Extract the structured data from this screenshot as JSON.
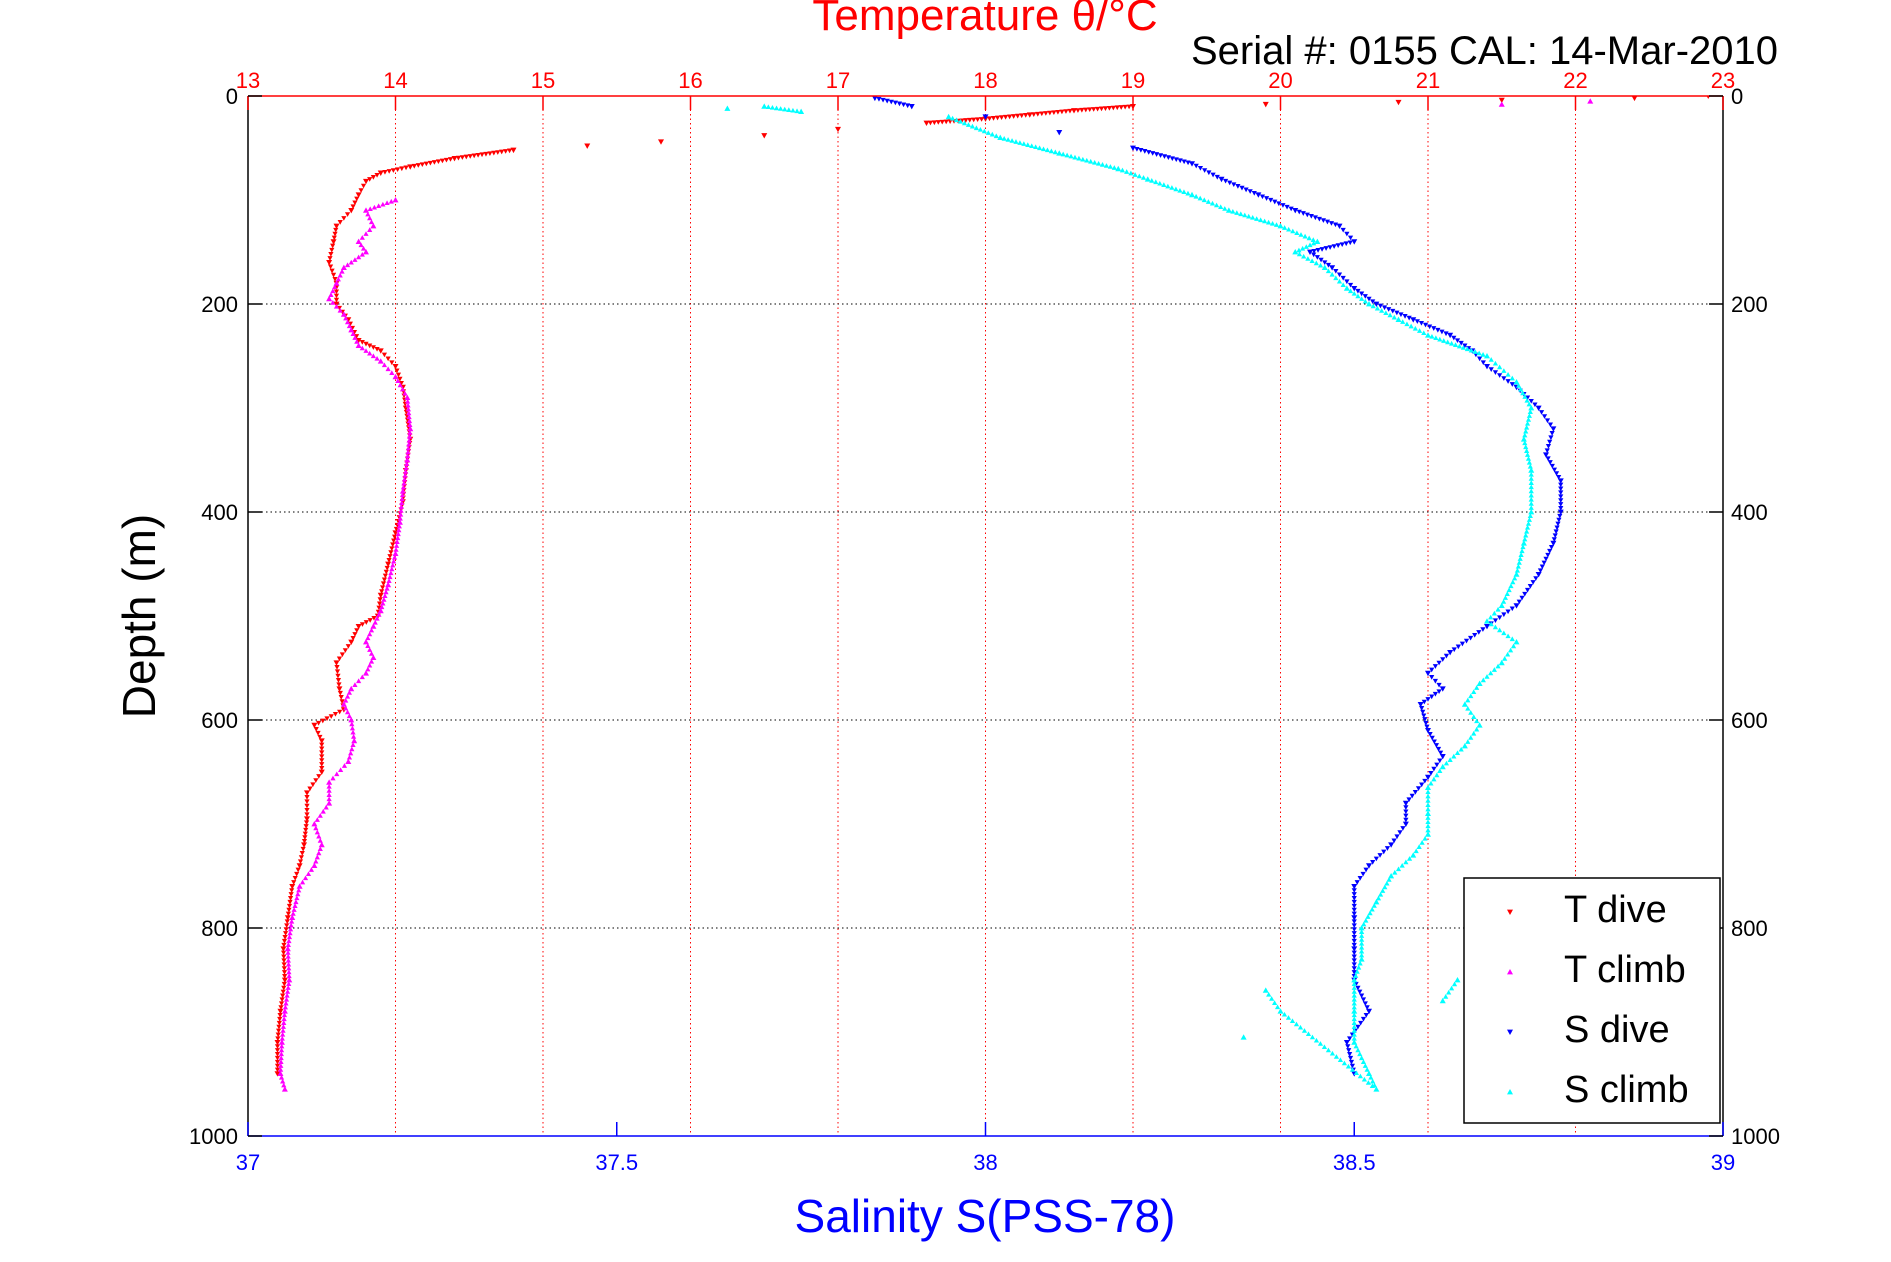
{
  "chart_data": {
    "type": "scatter",
    "title": "Temperature θ/°C",
    "subtitle": "Serial #: 0155  CAL: 14-Mar-2010",
    "ylabel": "Depth (m)",
    "xlabel_bottom": "Salinity S(PSS-78)",
    "ylim": [
      0,
      1000
    ],
    "y_inverted": true,
    "yticks": [
      0,
      200,
      400,
      600,
      800,
      1000
    ],
    "ytick_labels": [
      "0",
      "200",
      "400",
      "600",
      "800",
      "1000"
    ],
    "x_top": {
      "label": "Temperature θ/°C",
      "range": [
        13,
        23
      ],
      "ticks": [
        13,
        14,
        15,
        16,
        17,
        18,
        19,
        20,
        21,
        22,
        23
      ],
      "tick_labels": [
        "13",
        "14",
        "15",
        "16",
        "17",
        "18",
        "19",
        "20",
        "21",
        "22",
        "23"
      ]
    },
    "x_bottom": {
      "label": "Salinity S(PSS-78)",
      "range": [
        37,
        39
      ],
      "ticks": [
        37,
        37.5,
        38,
        38.5,
        39
      ],
      "tick_labels": [
        "37",
        "37.5",
        "38",
        "38.5",
        "39"
      ]
    },
    "grid": true,
    "legend_position": "bottom-right",
    "series": [
      {
        "name": "T dive",
        "axis": "top",
        "marker": "triangle-down",
        "color": "#ff0000",
        "points": [
          [
            22.9,
            0
          ],
          [
            22.4,
            2
          ],
          [
            21.5,
            4
          ],
          [
            20.8,
            6
          ],
          [
            19.9,
            8
          ],
          [
            19.0,
            10
          ],
          [
            18.6,
            14
          ],
          [
            18.3,
            18
          ],
          [
            18.0,
            22
          ],
          [
            17.6,
            26
          ],
          [
            17.0,
            32
          ],
          [
            16.5,
            38
          ],
          [
            15.8,
            44
          ],
          [
            15.3,
            48
          ],
          [
            14.8,
            52
          ],
          [
            14.4,
            60
          ],
          [
            14.1,
            68
          ],
          [
            13.9,
            74
          ],
          [
            13.8,
            82
          ],
          [
            13.75,
            95
          ],
          [
            13.7,
            110
          ],
          [
            13.6,
            125
          ],
          [
            13.58,
            140
          ],
          [
            13.55,
            160
          ],
          [
            13.6,
            180
          ],
          [
            13.6,
            200
          ],
          [
            13.68,
            215
          ],
          [
            13.75,
            235
          ],
          [
            13.9,
            245
          ],
          [
            14.0,
            260
          ],
          [
            14.05,
            280
          ],
          [
            14.07,
            300
          ],
          [
            14.1,
            330
          ],
          [
            14.07,
            360
          ],
          [
            14.05,
            390
          ],
          [
            14.0,
            420
          ],
          [
            13.95,
            450
          ],
          [
            13.9,
            480
          ],
          [
            13.88,
            500
          ],
          [
            13.75,
            510
          ],
          [
            13.7,
            525
          ],
          [
            13.6,
            545
          ],
          [
            13.62,
            570
          ],
          [
            13.65,
            590
          ],
          [
            13.45,
            605
          ],
          [
            13.5,
            620
          ],
          [
            13.5,
            650
          ],
          [
            13.4,
            670
          ],
          [
            13.4,
            695
          ],
          [
            13.38,
            720
          ],
          [
            13.35,
            740
          ],
          [
            13.3,
            760
          ],
          [
            13.27,
            790
          ],
          [
            13.24,
            820
          ],
          [
            13.25,
            850
          ],
          [
            13.22,
            880
          ],
          [
            13.2,
            910
          ],
          [
            13.2,
            940
          ]
        ]
      },
      {
        "name": "T climb",
        "axis": "top",
        "marker": "triangle-up",
        "color": "#ff00ff",
        "points": [
          [
            22.1,
            5
          ],
          [
            21.5,
            8
          ],
          [
            14.0,
            100
          ],
          [
            13.8,
            110
          ],
          [
            13.85,
            125
          ],
          [
            13.75,
            140
          ],
          [
            13.8,
            150
          ],
          [
            13.65,
            165
          ],
          [
            13.6,
            180
          ],
          [
            13.55,
            195
          ],
          [
            13.65,
            210
          ],
          [
            13.7,
            225
          ],
          [
            13.75,
            240
          ],
          [
            13.9,
            255
          ],
          [
            14.0,
            270
          ],
          [
            14.08,
            290
          ],
          [
            14.1,
            320
          ],
          [
            14.08,
            350
          ],
          [
            14.05,
            380
          ],
          [
            14.03,
            410
          ],
          [
            14.0,
            440
          ],
          [
            13.95,
            470
          ],
          [
            13.9,
            495
          ],
          [
            13.85,
            510
          ],
          [
            13.8,
            525
          ],
          [
            13.85,
            540
          ],
          [
            13.8,
            555
          ],
          [
            13.7,
            570
          ],
          [
            13.65,
            585
          ],
          [
            13.7,
            600
          ],
          [
            13.72,
            620
          ],
          [
            13.68,
            640
          ],
          [
            13.55,
            660
          ],
          [
            13.55,
            680
          ],
          [
            13.45,
            700
          ],
          [
            13.5,
            720
          ],
          [
            13.45,
            740
          ],
          [
            13.35,
            760
          ],
          [
            13.3,
            790
          ],
          [
            13.27,
            820
          ],
          [
            13.28,
            850
          ],
          [
            13.25,
            880
          ],
          [
            13.23,
            910
          ],
          [
            13.22,
            940
          ],
          [
            13.25,
            955
          ]
        ]
      },
      {
        "name": "S dive",
        "axis": "bottom",
        "marker": "triangle-down",
        "color": "#0000ff",
        "points": [
          [
            37.85,
            2
          ],
          [
            37.9,
            10
          ],
          [
            38.0,
            20
          ],
          [
            38.1,
            35
          ],
          [
            38.2,
            50
          ],
          [
            38.28,
            65
          ],
          [
            38.32,
            80
          ],
          [
            38.37,
            95
          ],
          [
            38.42,
            110
          ],
          [
            38.48,
            125
          ],
          [
            38.5,
            140
          ],
          [
            38.44,
            150
          ],
          [
            38.47,
            165
          ],
          [
            38.5,
            185
          ],
          [
            38.53,
            200
          ],
          [
            38.58,
            215
          ],
          [
            38.63,
            230
          ],
          [
            38.66,
            245
          ],
          [
            38.68,
            260
          ],
          [
            38.72,
            280
          ],
          [
            38.75,
            300
          ],
          [
            38.77,
            320
          ],
          [
            38.76,
            345
          ],
          [
            38.78,
            370
          ],
          [
            38.78,
            400
          ],
          [
            38.77,
            430
          ],
          [
            38.75,
            460
          ],
          [
            38.72,
            490
          ],
          [
            38.68,
            510
          ],
          [
            38.63,
            535
          ],
          [
            38.6,
            555
          ],
          [
            38.62,
            570
          ],
          [
            38.59,
            585
          ],
          [
            38.6,
            610
          ],
          [
            38.62,
            635
          ],
          [
            38.6,
            655
          ],
          [
            38.57,
            680
          ],
          [
            38.57,
            700
          ],
          [
            38.55,
            720
          ],
          [
            38.52,
            740
          ],
          [
            38.5,
            760
          ],
          [
            38.5,
            790
          ],
          [
            38.5,
            820
          ],
          [
            38.5,
            850
          ],
          [
            38.52,
            880
          ],
          [
            38.49,
            910
          ],
          [
            38.5,
            940
          ]
        ]
      },
      {
        "name": "S climb",
        "axis": "bottom",
        "marker": "triangle-up",
        "color": "#00ffff",
        "points": [
          [
            37.7,
            10
          ],
          [
            37.75,
            15
          ],
          [
            37.65,
            12
          ],
          [
            37.95,
            20
          ],
          [
            38.02,
            40
          ],
          [
            38.1,
            55
          ],
          [
            38.18,
            70
          ],
          [
            38.22,
            80
          ],
          [
            38.28,
            95
          ],
          [
            38.33,
            110
          ],
          [
            38.4,
            125
          ],
          [
            38.45,
            140
          ],
          [
            38.42,
            150
          ],
          [
            38.46,
            165
          ],
          [
            38.49,
            185
          ],
          [
            38.52,
            200
          ],
          [
            38.56,
            215
          ],
          [
            38.6,
            230
          ],
          [
            38.68,
            250
          ],
          [
            38.72,
            275
          ],
          [
            38.74,
            300
          ],
          [
            38.73,
            330
          ],
          [
            38.74,
            360
          ],
          [
            38.74,
            400
          ],
          [
            38.73,
            430
          ],
          [
            38.72,
            460
          ],
          [
            38.7,
            490
          ],
          [
            38.68,
            505
          ],
          [
            38.72,
            525
          ],
          [
            38.7,
            545
          ],
          [
            38.67,
            565
          ],
          [
            38.65,
            585
          ],
          [
            38.67,
            605
          ],
          [
            38.65,
            625
          ],
          [
            38.62,
            645
          ],
          [
            38.6,
            665
          ],
          [
            38.6,
            690
          ],
          [
            38.6,
            710
          ],
          [
            38.58,
            730
          ],
          [
            38.55,
            750
          ],
          [
            38.53,
            775
          ],
          [
            38.51,
            800
          ],
          [
            38.51,
            830
          ],
          [
            38.5,
            850
          ],
          [
            38.5,
            880
          ],
          [
            38.5,
            910
          ],
          [
            38.52,
            940
          ],
          [
            38.53,
            955
          ],
          [
            38.4,
            880
          ],
          [
            38.38,
            860
          ],
          [
            38.62,
            870
          ],
          [
            38.64,
            850
          ],
          [
            38.35,
            905
          ]
        ]
      }
    ]
  }
}
